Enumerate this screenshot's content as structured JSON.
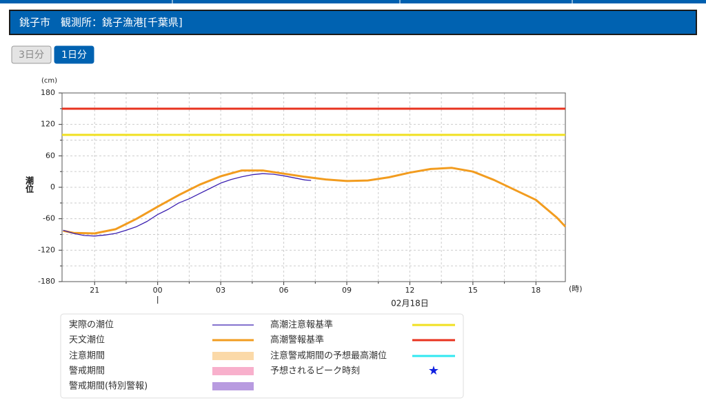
{
  "header": {
    "title": "銚子市　観測所：銚子漁港[千葉県]"
  },
  "buttons": [
    {
      "label": "3日分",
      "active": false
    },
    {
      "label": "1日分",
      "active": true
    }
  ],
  "chart_data": {
    "type": "line",
    "y_unit": "(cm)",
    "y_label": "潮位",
    "x_unit": "(時)",
    "date_label": {
      "text": "02月18日",
      "x": 36
    },
    "xlim": [
      19.45,
      43.4
    ],
    "ylim": [
      -180,
      180
    ],
    "xticks": [
      21,
      {
        "value": 24,
        "label": "00"
      },
      {
        "value": 27,
        "label": "03"
      },
      {
        "value": 30,
        "label": "06"
      },
      {
        "value": 33,
        "label": "09"
      },
      {
        "value": 36,
        "label": "12"
      },
      {
        "value": 39,
        "label": "15"
      },
      {
        "value": 42,
        "label": "18"
      }
    ],
    "x_minor_ticks": [
      22.5,
      25.5,
      28.5,
      31.5,
      34.5,
      37.5,
      40.5
    ],
    "yticks": [
      -180,
      -120,
      -60,
      0,
      60,
      120,
      180
    ],
    "y_minor_ticks": [
      -150,
      -90,
      -30,
      30,
      90,
      150
    ],
    "grid": true,
    "series": [
      {
        "name": "実際の潮位",
        "color": "#3a1fb0",
        "width": 1.3,
        "x": [
          19.5,
          20,
          20.5,
          21,
          21.5,
          22,
          22.5,
          23,
          23.5,
          24,
          24.5,
          25,
          25.5,
          26,
          26.5,
          27,
          27.5,
          28,
          28.5,
          29,
          29.5,
          30,
          30.5,
          31,
          31.3
        ],
        "values": [
          -82,
          -88,
          -92,
          -93,
          -91,
          -88,
          -82,
          -75,
          -65,
          -52,
          -42,
          -30,
          -22,
          -12,
          -2,
          8,
          15,
          20,
          24,
          26,
          25,
          22,
          18,
          14,
          13
        ]
      },
      {
        "name": "天文潮位",
        "color": "#f29c1f",
        "width": 3,
        "x": [
          19.5,
          20,
          21,
          22,
          23,
          24,
          25,
          26,
          27,
          28,
          29,
          30,
          31,
          32,
          33,
          34,
          35,
          36,
          37,
          38,
          39,
          40,
          41,
          42,
          43,
          43.4
        ],
        "values": [
          -83,
          -87,
          -88,
          -80,
          -60,
          -37,
          -15,
          5,
          21,
          32,
          32,
          26,
          20,
          15,
          12,
          13,
          19,
          28,
          35,
          37,
          30,
          14,
          -5,
          -24,
          -58,
          -75
        ]
      }
    ],
    "thresholds": [
      {
        "name": "高潮注意報基準",
        "color": "#f0e020",
        "value": 100
      },
      {
        "name": "高潮警報基準",
        "color": "#e8321e",
        "value": 150
      }
    ],
    "legend_extra": [
      {
        "name": "注意期間",
        "color": "#fbd9a8",
        "column": "left"
      },
      {
        "name": "警戒期間",
        "color": "#f8b0cc",
        "column": "left"
      },
      {
        "name": "警戒期間(特別警報)",
        "color": "#b89be0",
        "column": "left"
      },
      {
        "name": "注意警戒期間の予想最高潮位",
        "color": "#30e8f0",
        "column": "right"
      },
      {
        "name": "予想されるピーク時刻",
        "color": "#1020e0",
        "column": "right",
        "symbol": "★"
      }
    ]
  }
}
